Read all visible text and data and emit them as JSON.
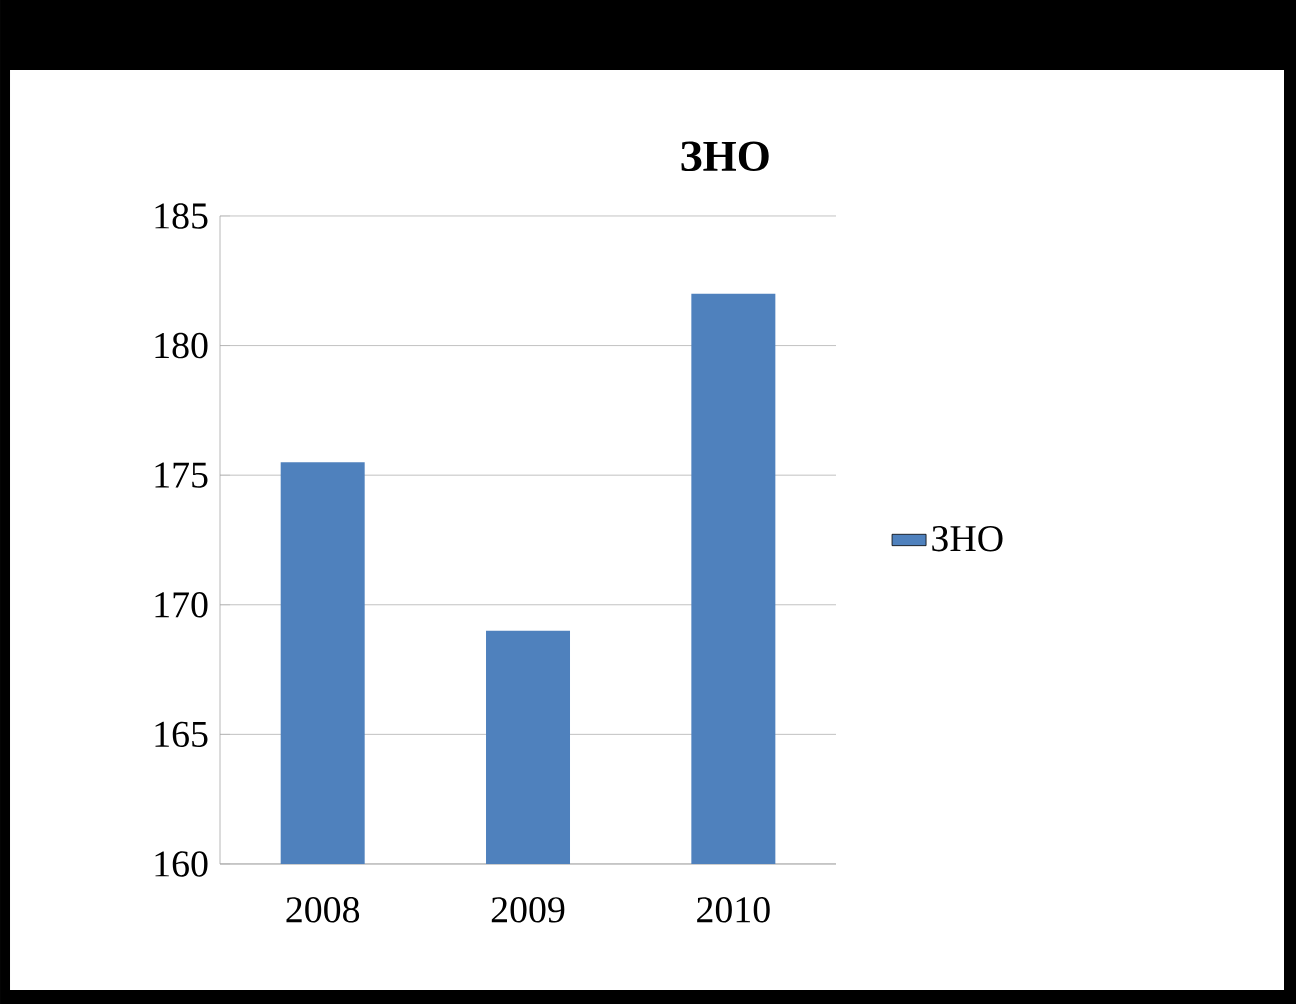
{
  "chart_data": {
    "type": "bar",
    "title": "ЗНО",
    "categories": [
      "2008",
      "2009",
      "2010"
    ],
    "series": [
      {
        "name": "ЗНО",
        "color": "#4f81bd",
        "values": [
          175.5,
          169,
          182
        ]
      }
    ],
    "ylim": [
      160,
      185
    ],
    "yticks": [
      160,
      165,
      170,
      175,
      180,
      185
    ],
    "grid": "y",
    "legend": "right"
  }
}
